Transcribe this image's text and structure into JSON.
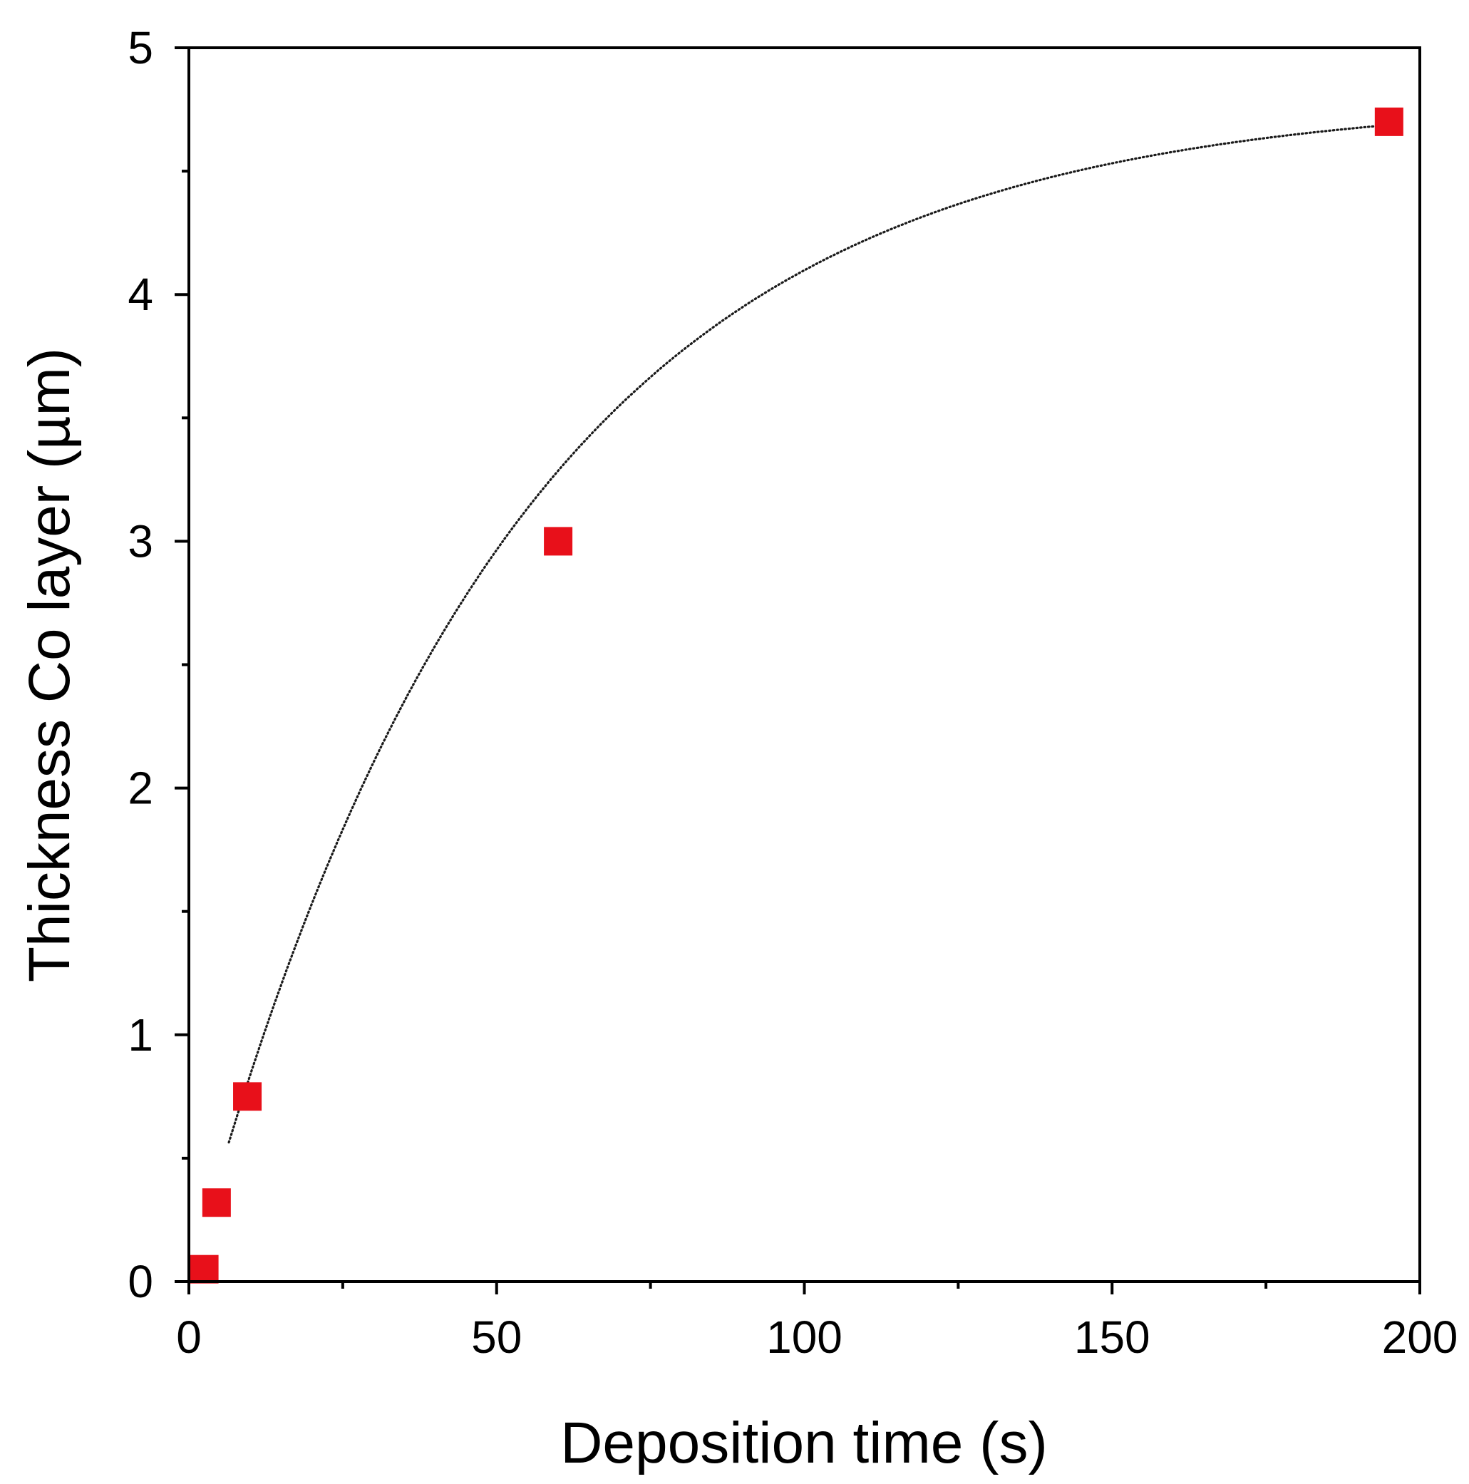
{
  "chart_data": {
    "type": "scatter",
    "xlabel": "Deposition time (s)",
    "ylabel": "Thickness Co layer (µm)",
    "xlim": [
      0,
      200
    ],
    "ylim": [
      0,
      5
    ],
    "x_ticks": [
      0,
      50,
      100,
      150,
      200
    ],
    "y_ticks": [
      0,
      1,
      2,
      3,
      4,
      5
    ],
    "x_tick_labels": [
      "0",
      "50",
      "100",
      "150",
      "200"
    ],
    "y_tick_labels": [
      "0",
      "1",
      "2",
      "3",
      "4",
      "5"
    ],
    "x_minor_ticks": [
      25,
      75,
      125,
      175
    ],
    "y_minor_ticks": [
      0.5,
      1.5,
      2.5,
      3.5,
      4.5
    ],
    "grid": false,
    "legend": "none",
    "series": [
      {
        "marker": "square",
        "color": "#e8101a",
        "points": [
          {
            "x": 2.5,
            "y": 0.05
          },
          {
            "x": 4.5,
            "y": 0.32
          },
          {
            "x": 9.5,
            "y": 0.75
          },
          {
            "x": 60,
            "y": 3.0
          },
          {
            "x": 195,
            "y": 4.7
          }
        ]
      }
    ],
    "fit_line": {
      "style": "dotted",
      "color": "#1a1a1a",
      "model": "exponential-saturation",
      "y_max": 4.8,
      "tau": 52,
      "x_range": [
        6.5,
        193
      ]
    }
  }
}
